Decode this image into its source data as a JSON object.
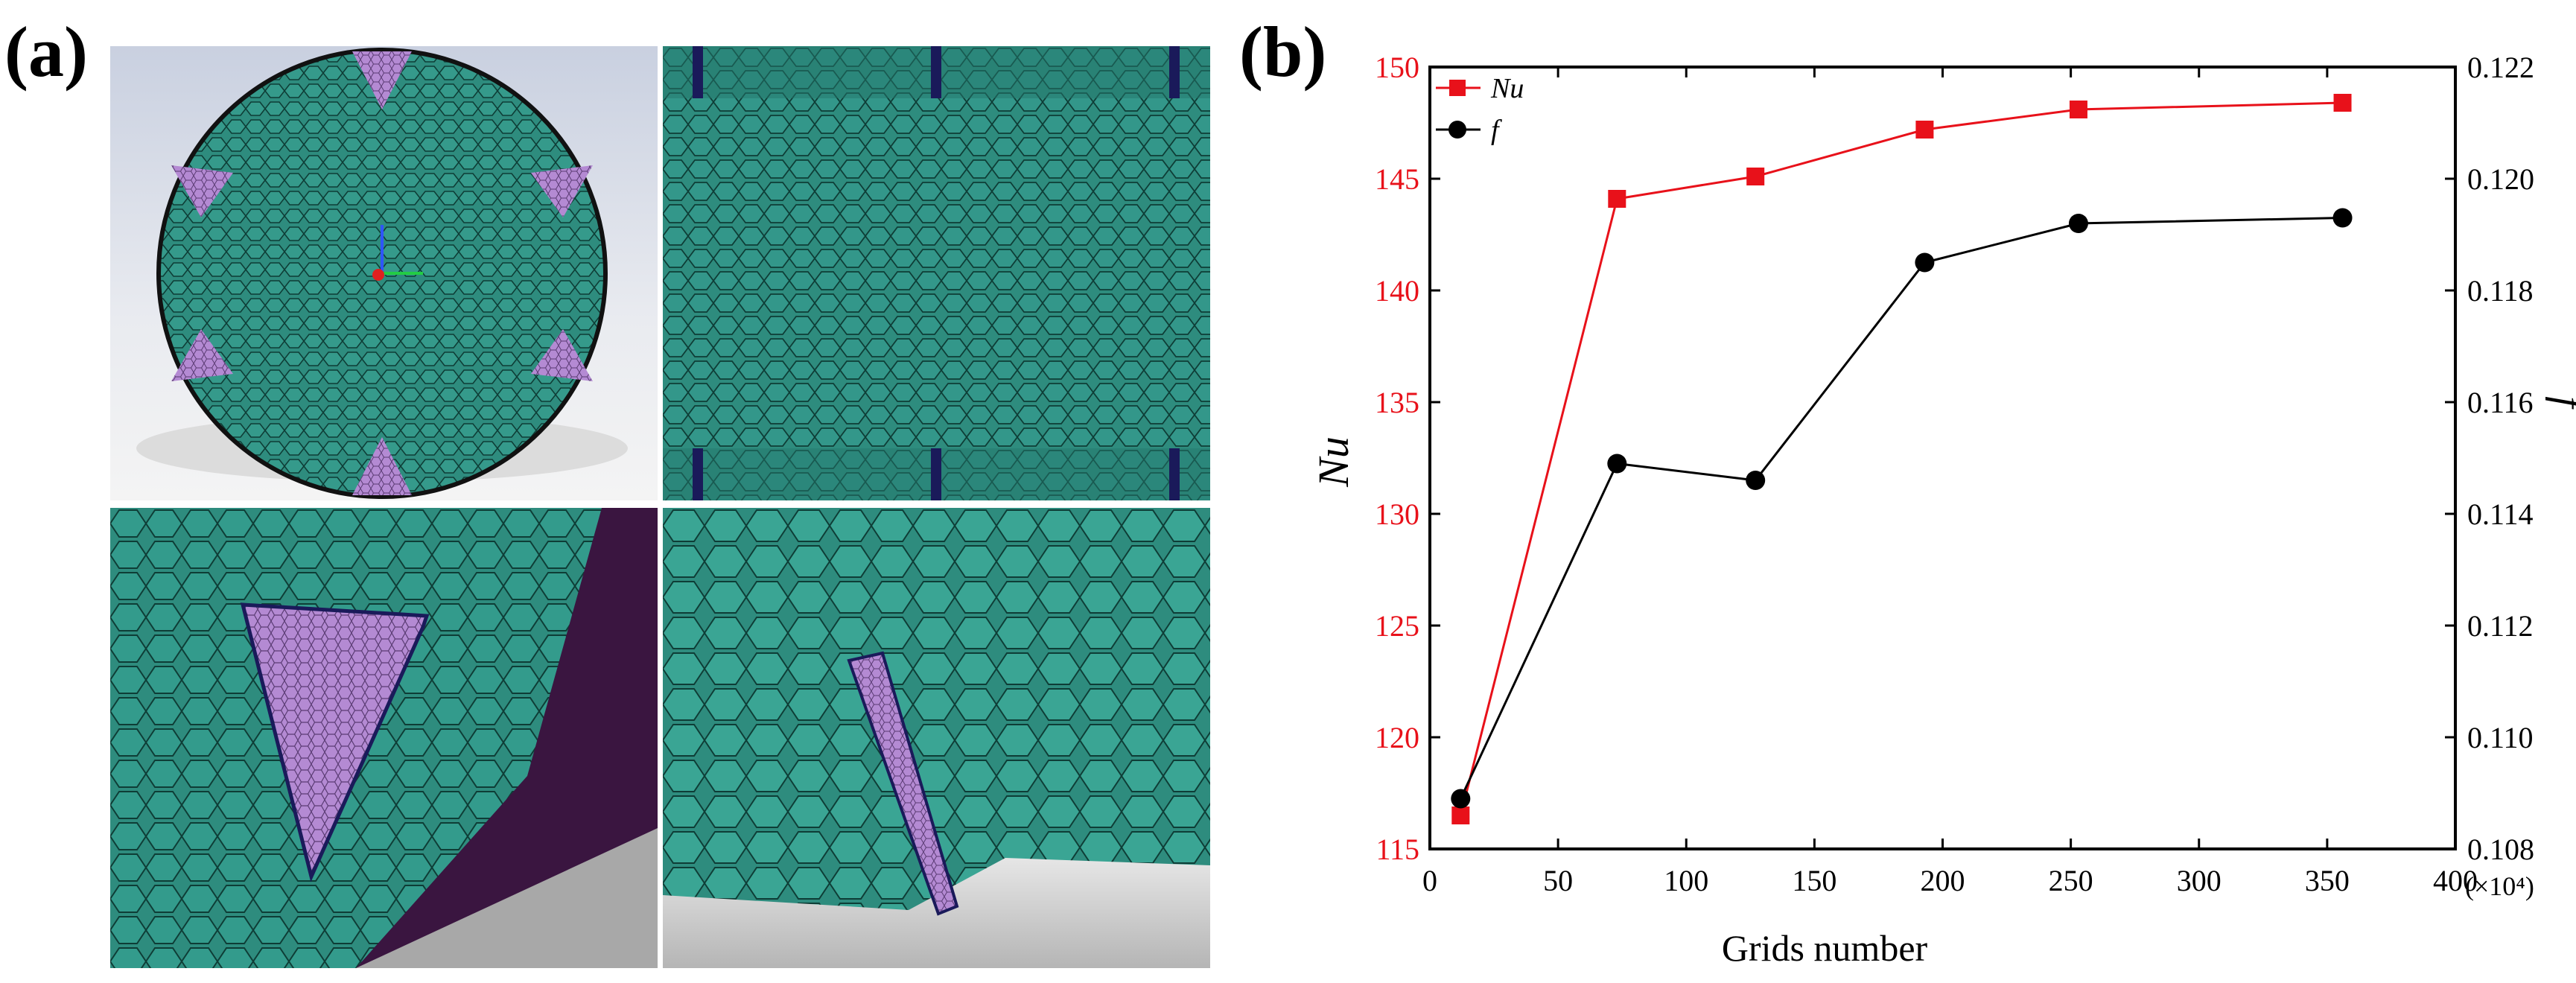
{
  "panels": {
    "a_label": "(a)",
    "b_label": "(b)"
  },
  "colors": {
    "mesh_fill": "#2e8c7e",
    "mesh_edge": "#0e3d36",
    "face_fill": "#b48ad3",
    "nu": "#e8111a",
    "f": "#000000"
  },
  "chart_data": {
    "type": "line",
    "x": [
      12,
      73,
      127,
      193,
      253,
      356
    ],
    "xlabel": "Grids number",
    "x_unit_note": "(×10⁴)",
    "xlim": [
      0,
      400
    ],
    "xticks": [
      0,
      50,
      100,
      150,
      200,
      250,
      300,
      350,
      400
    ],
    "left_axis": {
      "label": "Nu",
      "ylim": [
        115,
        150
      ],
      "ticks": [
        115,
        120,
        125,
        130,
        135,
        140,
        145,
        150
      ],
      "color": "#e8111a"
    },
    "right_axis": {
      "label": "f",
      "ylim": [
        0.108,
        0.122
      ],
      "ticks": [
        "0.108",
        "0.110",
        "0.112",
        "0.114",
        "0.116",
        "0.118",
        "0.120",
        "0.122"
      ],
      "color": "#000000"
    },
    "series": [
      {
        "name": "Nu",
        "axis": "left",
        "marker": "square",
        "color": "#e8111a",
        "values": [
          116.5,
          144.1,
          145.1,
          147.2,
          148.1,
          148.4
        ]
      },
      {
        "name": "f",
        "axis": "right",
        "marker": "circle",
        "color": "#000000",
        "values": [
          0.1089,
          0.1149,
          0.1146,
          0.1185,
          0.1192,
          0.1193
        ]
      }
    ],
    "legend": "top-left"
  }
}
